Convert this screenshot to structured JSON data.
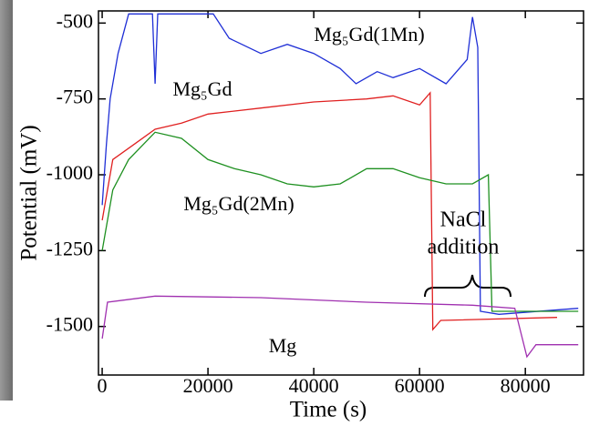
{
  "chart_data": {
    "type": "line",
    "x_label": "Time (s)",
    "y_label": "Potential (mV)",
    "xlim": [
      -700,
      91000
    ],
    "ylim": [
      -1660,
      -460
    ],
    "xticks": [
      0,
      20000,
      40000,
      60000,
      80000
    ],
    "yticks": [
      -500,
      -750,
      -1000,
      -1250,
      -1500
    ],
    "annotations": [
      "NaCl",
      "addition"
    ],
    "series": [
      {
        "name": "Mg₅Gd(1Mn)",
        "color": "#1f2fd6",
        "x": [
          0,
          800,
          1500,
          3000,
          5000,
          9500,
          10000,
          10500,
          21000,
          24000,
          30000,
          35000,
          40000,
          45000,
          48000,
          52000,
          55000,
          60000,
          65000,
          69000,
          70000,
          71000,
          71500,
          75000,
          90000
        ],
        "values": [
          -1100,
          -900,
          -750,
          -600,
          -470,
          -470,
          -700,
          -470,
          -470,
          -550,
          -600,
          -570,
          -600,
          -650,
          -700,
          -660,
          -680,
          -650,
          -700,
          -620,
          -480,
          -580,
          -1450,
          -1460,
          -1440
        ]
      },
      {
        "name": "Mg₅Gd",
        "color": "#e02020",
        "x": [
          0,
          2000,
          6000,
          10000,
          15000,
          20000,
          30000,
          40000,
          50000,
          55000,
          60000,
          62000,
          62500,
          64000,
          86000
        ],
        "values": [
          -1150,
          -950,
          -900,
          -850,
          -830,
          -800,
          -780,
          -760,
          -750,
          -740,
          -770,
          -730,
          -1510,
          -1480,
          -1470
        ]
      },
      {
        "name": "Mg₅Gd(2Mn)",
        "color": "#1e9020",
        "x": [
          0,
          2000,
          5000,
          10000,
          15000,
          20000,
          25000,
          30000,
          35000,
          40000,
          45000,
          50000,
          55000,
          60000,
          65000,
          70000,
          73000,
          73700,
          90000
        ],
        "values": [
          -1250,
          -1050,
          -950,
          -860,
          -880,
          -950,
          -980,
          -1000,
          -1030,
          -1040,
          -1030,
          -980,
          -980,
          -1010,
          -1030,
          -1030,
          -1000,
          -1450,
          -1450
        ]
      },
      {
        "name": "Mg",
        "color": "#a030b0",
        "x": [
          0,
          1000,
          10000,
          30000,
          50000,
          70000,
          78000,
          80300,
          82000,
          90000
        ],
        "values": [
          -1540,
          -1420,
          -1400,
          -1405,
          -1420,
          -1430,
          -1440,
          -1600,
          -1560,
          -1560
        ]
      }
    ]
  }
}
